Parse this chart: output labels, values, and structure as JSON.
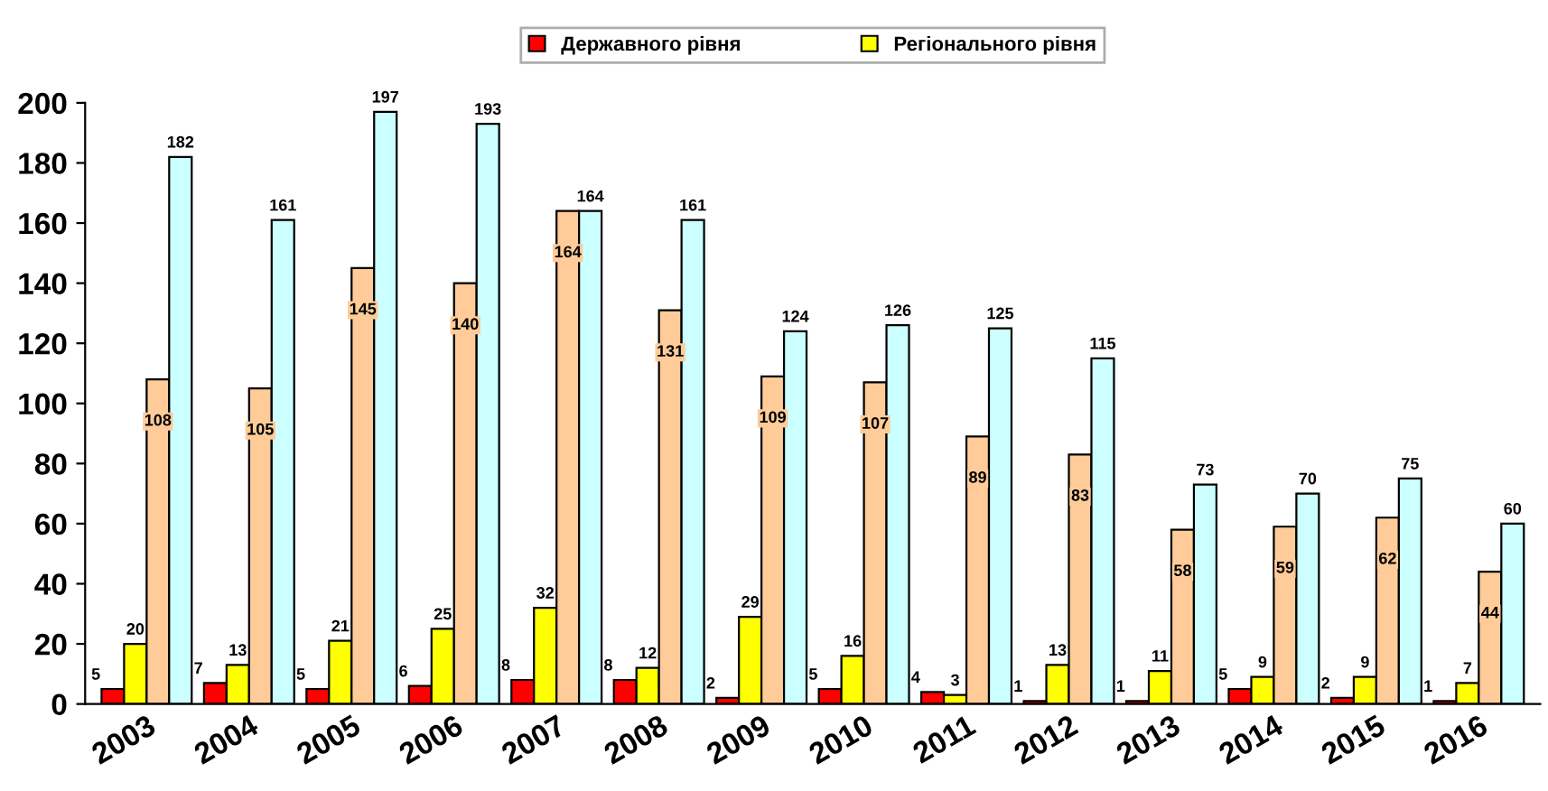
{
  "chart_data": {
    "type": "bar",
    "categories": [
      "2003",
      "2004",
      "2005",
      "2006",
      "2007",
      "2008",
      "2009",
      "2010",
      "2011",
      "2012",
      "2013",
      "2014",
      "2015",
      "2016"
    ],
    "series": [
      {
        "name": "Державного рівня",
        "color": "#ff0000",
        "values": [
          5,
          7,
          5,
          6,
          8,
          8,
          2,
          5,
          4,
          1,
          1,
          5,
          2,
          1
        ]
      },
      {
        "name": "Регіонального рівня",
        "color": "#ffff00",
        "values": [
          20,
          13,
          21,
          25,
          32,
          12,
          29,
          16,
          3,
          13,
          11,
          9,
          9,
          7
        ]
      },
      {
        "color": "#ffcc99",
        "values": [
          108,
          105,
          145,
          140,
          164,
          131,
          109,
          107,
          89,
          83,
          58,
          59,
          62,
          44
        ]
      },
      {
        "color": "#ccffff",
        "values": [
          182,
          161,
          197,
          193,
          164,
          161,
          124,
          126,
          125,
          115,
          73,
          70,
          75,
          60
        ]
      }
    ],
    "ylim": [
      0,
      200
    ],
    "yticks": [
      0,
      20,
      40,
      60,
      80,
      100,
      120,
      140,
      160,
      180,
      200
    ],
    "data_labels": true,
    "grid": false,
    "legend": "top"
  }
}
